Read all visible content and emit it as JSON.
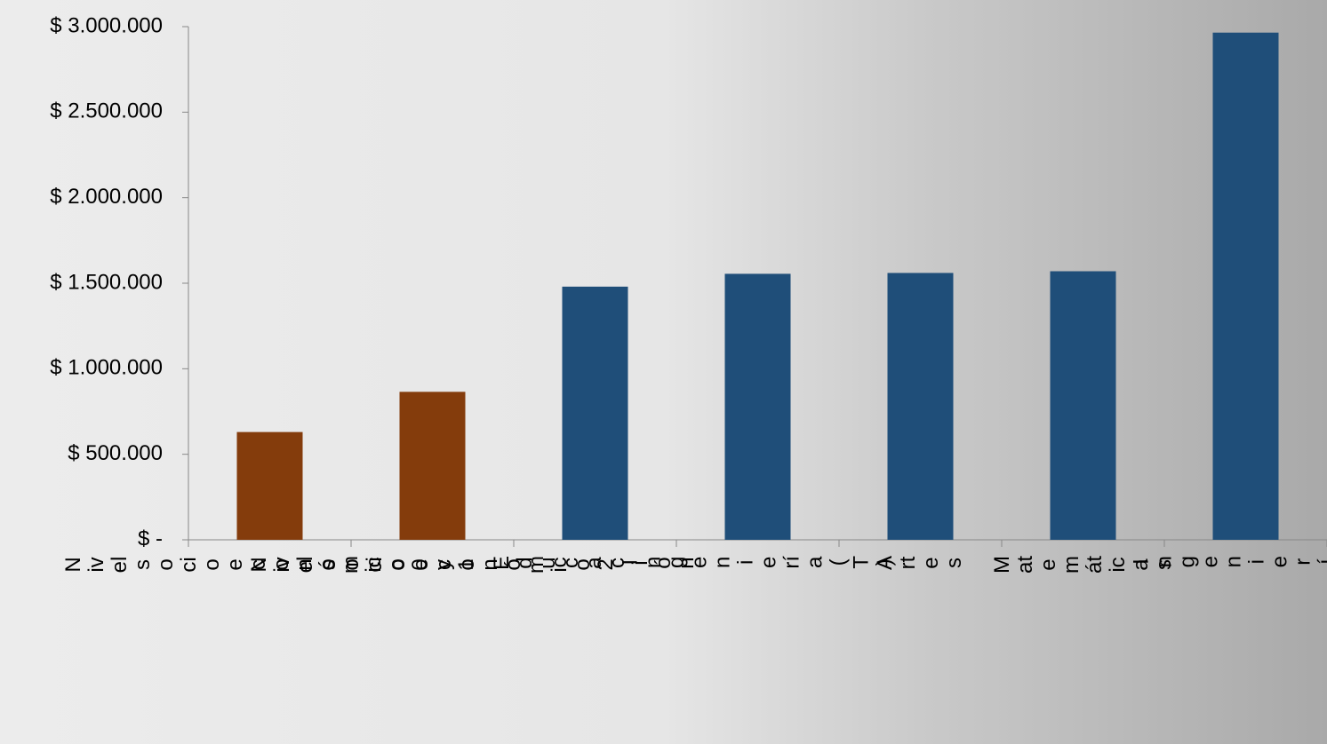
{
  "chart_data": {
    "type": "bar",
    "categories": [
      "Nivel socioeconómico 0 y 1",
      "Nivel socioeconómico 2",
      "Educación",
      "Ingeniería (T)",
      "Artes",
      "Matemáticas",
      "Ingeniería"
    ],
    "values": [
      630000,
      865000,
      1480000,
      1555000,
      1560000,
      1570000,
      2965000
    ],
    "colors": [
      "#843c0c",
      "#843c0c",
      "#1f4e79",
      "#1f4e79",
      "#1f4e79",
      "#1f4e79",
      "#1f4e79"
    ],
    "ylim": [
      0,
      3000000
    ],
    "yticks": [
      {
        "value": 0,
        "label": "$ -"
      },
      {
        "value": 500000,
        "label": "$ 500.000"
      },
      {
        "value": 1000000,
        "label": "$ 1.000.000"
      },
      {
        "value": 1500000,
        "label": "$ 1.500.000"
      },
      {
        "value": 2000000,
        "label": "$ 2.000.000"
      },
      {
        "value": 2500000,
        "label": "$ 2.500.000"
      },
      {
        "value": 3000000,
        "label": "$ 3.000.000"
      }
    ],
    "grid": false
  }
}
